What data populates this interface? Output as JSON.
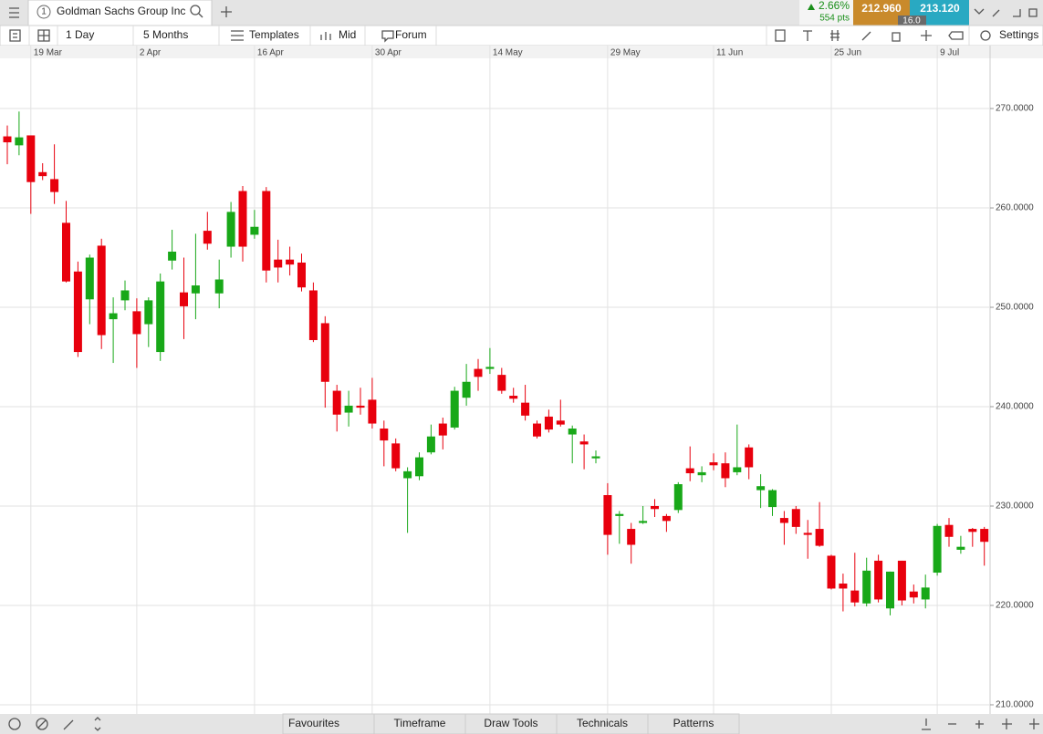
{
  "ui": {
    "menu_tab_number": "1",
    "tab_title": "Goldman Sachs Group Inc",
    "change": "2.66%",
    "change_pts": "554 pts",
    "bid": "212.960",
    "ask": "213.120",
    "spread": "16.0",
    "toolbar": {
      "interval": "1 Day",
      "range": "5 Months",
      "templates": "Templates",
      "price_type": "Mid",
      "forum": "Forum",
      "settings": "Settings"
    },
    "bottom_bar": [
      "Favourites",
      "Timeframe",
      "Draw Tools",
      "Technicals",
      "Patterns"
    ]
  },
  "chart_data": {
    "type": "candlestick",
    "categories": [
      null,
      null,
      "19 Mar",
      null,
      null,
      null,
      null,
      null,
      null,
      null,
      null,
      "2 Apr",
      null,
      null,
      null,
      null,
      null,
      null,
      null,
      null,
      null,
      "16 Apr",
      null,
      null,
      null,
      null,
      null,
      null,
      null,
      null,
      null,
      "30 Apr",
      null,
      null,
      null,
      null,
      null,
      null,
      null,
      null,
      null,
      "14 May",
      null,
      null,
      null,
      null,
      null,
      null,
      null,
      null,
      null,
      "29 May",
      null,
      null,
      null,
      null,
      null,
      null,
      null,
      null,
      "11 Jun",
      null,
      null,
      null,
      null,
      null,
      null,
      null,
      null,
      null,
      "25 Jun",
      null,
      null,
      null,
      null,
      null,
      null,
      null,
      null,
      "9 Jul",
      null,
      null,
      null,
      null
    ],
    "open": [
      267.2,
      266.3,
      267.3,
      263.6,
      262.9,
      258.5,
      253.6,
      250.8,
      256.2,
      248.8,
      250.7,
      249.6,
      248.3,
      245.5,
      254.7,
      251.5,
      251.4,
      257.7,
      251.4,
      256.1,
      261.7,
      257.3,
      261.7,
      254.8,
      254.8,
      254.5,
      251.7,
      248.4,
      241.6,
      239.4,
      240.1,
      240.7,
      237.8,
      236.3,
      232.8,
      233.0,
      235.4,
      238.3,
      237.9,
      240.9,
      243.8,
      243.8,
      243.2,
      241.1,
      240.4,
      238.3,
      239.0,
      238.6,
      237.2,
      236.5,
      234.8,
      231.1,
      229.0,
      227.7,
      228.3,
      230.0,
      229.0,
      229.6,
      233.8,
      233.1,
      234.4,
      234.3,
      233.4,
      235.9,
      231.6,
      229.9,
      228.8,
      229.7,
      227.3,
      227.7,
      225.0,
      222.2,
      221.5,
      220.2,
      224.5,
      219.7,
      224.5,
      221.4,
      220.6,
      223.3,
      228.1,
      225.6,
      227.7,
      227.7
    ],
    "high": [
      268.3,
      269.7,
      267.3,
      264.5,
      266.4,
      260.7,
      254.6,
      255.3,
      256.9,
      251.0,
      252.7,
      250.9,
      251.0,
      253.4,
      257.8,
      255.0,
      257.4,
      259.6,
      254.8,
      260.6,
      262.2,
      259.8,
      262.1,
      256.8,
      256.1,
      255.4,
      252.5,
      249.1,
      242.2,
      241.6,
      241.9,
      242.9,
      238.6,
      236.8,
      233.9,
      235.4,
      238.2,
      238.9,
      242.0,
      244.3,
      244.8,
      245.9,
      243.9,
      241.9,
      242.2,
      238.6,
      239.7,
      240.7,
      238.1,
      237.2,
      235.6,
      232.3,
      229.5,
      228.3,
      230.0,
      230.7,
      229.2,
      232.4,
      236.0,
      234.0,
      235.3,
      235.4,
      238.2,
      236.2,
      233.2,
      231.7,
      229.5,
      230.0,
      228.6,
      230.4,
      225.1,
      223.2,
      225.3,
      224.8,
      225.1,
      223.4,
      224.5,
      222.1,
      223.1,
      228.2,
      228.8,
      227.0,
      227.8,
      227.9
    ],
    "low": [
      264.4,
      265.3,
      259.4,
      262.8,
      260.4,
      252.5,
      245.0,
      248.3,
      245.8,
      244.4,
      249.7,
      243.9,
      246.0,
      244.6,
      253.8,
      246.8,
      248.8,
      255.8,
      249.9,
      255.0,
      254.6,
      256.9,
      252.5,
      252.5,
      253.2,
      251.6,
      246.5,
      239.9,
      237.5,
      238.0,
      239.2,
      237.8,
      234.0,
      233.5,
      227.3,
      232.6,
      235.2,
      235.7,
      237.7,
      240.1,
      241.6,
      243.3,
      241.3,
      240.4,
      238.6,
      236.8,
      237.4,
      238.0,
      234.3,
      233.7,
      234.3,
      225.1,
      226.2,
      224.2,
      228.2,
      228.9,
      227.4,
      229.3,
      232.5,
      232.4,
      233.6,
      231.9,
      233.1,
      232.7,
      229.8,
      229.0,
      226.1,
      227.2,
      224.7,
      225.9,
      221.6,
      219.4,
      219.9,
      219.9,
      220.3,
      219.0,
      220.0,
      220.2,
      219.7,
      223.0,
      225.9,
      225.2,
      225.9,
      224.0
    ],
    "close": [
      266.6,
      267.1,
      262.6,
      263.2,
      261.6,
      252.6,
      245.5,
      255.0,
      247.2,
      249.4,
      251.7,
      247.3,
      250.7,
      252.6,
      255.6,
      250.1,
      252.2,
      256.4,
      252.8,
      259.6,
      256.1,
      258.1,
      253.7,
      254.0,
      254.3,
      252.0,
      246.7,
      242.5,
      239.2,
      240.1,
      239.9,
      238.3,
      236.6,
      233.8,
      233.5,
      234.9,
      237.0,
      237.1,
      241.6,
      242.5,
      243.0,
      244.0,
      241.6,
      240.8,
      239.1,
      237.0,
      237.7,
      238.2,
      237.8,
      236.2,
      235.0,
      227.1,
      229.2,
      226.1,
      228.5,
      229.7,
      228.5,
      232.2,
      233.3,
      233.4,
      234.1,
      232.8,
      233.9,
      233.9,
      232.0,
      231.6,
      228.3,
      227.9,
      227.1,
      226.0,
      221.7,
      221.7,
      220.3,
      223.5,
      220.6,
      223.4,
      220.5,
      220.8,
      221.8,
      228.0,
      226.9,
      225.9,
      227.4,
      226.4
    ],
    "up_color": "#18a818",
    "down_color": "#e8000d",
    "ylim": [
      209.08,
      275.05
    ],
    "yticks": [
      {
        "value": 210,
        "label": "210.0000"
      },
      {
        "value": 220,
        "label": "220.0000"
      },
      {
        "value": 230,
        "label": "230.0000"
      },
      {
        "value": 240,
        "label": "240.0000"
      },
      {
        "value": 250,
        "label": "250.0000"
      },
      {
        "value": 260,
        "label": "260.0000"
      },
      {
        "value": 270,
        "label": "270.0000"
      }
    ],
    "grid": true
  }
}
